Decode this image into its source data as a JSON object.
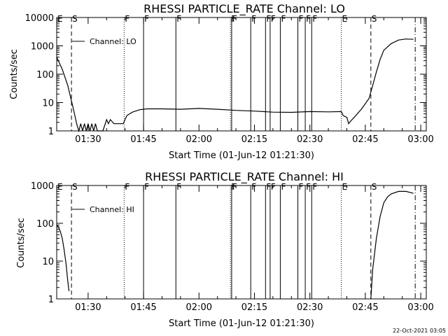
{
  "colors": {
    "background": "#ffffff",
    "foreground": "#000000"
  },
  "footer": {
    "timestamp": "22-Oct-2021 03:05"
  },
  "chart_data": [
    {
      "type": "line",
      "title": "RHESSI PARTICLE_RATE Channel: LO",
      "xlabel": "Start Time (01-Jun-12 01:21:30)",
      "ylabel": "Counts/sec",
      "xlim": [
        "01:21:30",
        "03:01:30"
      ],
      "ylim": [
        1,
        10000
      ],
      "yscale": "log",
      "grid": false,
      "x_ticks": [
        "01:30",
        "01:45",
        "02:00",
        "02:15",
        "02:30",
        "02:45",
        "03:00"
      ],
      "y_ticks": [
        "1",
        "10",
        "100",
        "1000",
        "10000"
      ],
      "legend": {
        "position": "top-left",
        "entries": [
          "Channel: LO"
        ]
      },
      "series": [
        {
          "name": "Channel: LO",
          "points": [
            [
              "01:21:30",
              400
            ],
            [
              "01:23:00",
              150
            ],
            [
              "01:24:30",
              40
            ],
            [
              "01:26:00",
              6
            ],
            [
              "01:27:00",
              1.6
            ],
            [
              "01:27:30",
              1
            ],
            [
              "01:28:00",
              1.8
            ],
            [
              "01:28:30",
              1
            ],
            [
              "01:29:00",
              1.8
            ],
            [
              "01:29:30",
              1
            ],
            [
              "01:30:00",
              1.8
            ],
            [
              "01:30:30",
              1
            ],
            [
              "01:31:00",
              1.8
            ],
            [
              "01:31:30",
              1
            ],
            [
              "01:32:00",
              1.8
            ],
            [
              "01:32:30",
              1
            ],
            [
              "01:33:00",
              1
            ],
            [
              "01:34:00",
              1
            ],
            [
              "01:35:00",
              2.5
            ],
            [
              "01:35:30",
              1.8
            ],
            [
              "01:36:00",
              2.5
            ],
            [
              "01:37:00",
              1.8
            ],
            [
              "01:38:00",
              1.8
            ],
            [
              "01:39:30",
              1.8
            ],
            [
              "01:40:30",
              3.5
            ],
            [
              "01:42:00",
              4.6
            ],
            [
              "01:44:00",
              5.6
            ],
            [
              "01:46:00",
              6.0
            ],
            [
              "01:50:00",
              6.0
            ],
            [
              "01:55:00",
              5.8
            ],
            [
              "02:00:00",
              6.2
            ],
            [
              "02:05:00",
              5.8
            ],
            [
              "02:10:00",
              5.3
            ],
            [
              "02:15:00",
              5.0
            ],
            [
              "02:20:00",
              4.6
            ],
            [
              "02:25:00",
              4.5
            ],
            [
              "02:30:00",
              4.8
            ],
            [
              "02:35:00",
              4.7
            ],
            [
              "02:38:30",
              4.8
            ],
            [
              "02:39:00",
              3.5
            ],
            [
              "02:40:00",
              3.0
            ],
            [
              "02:40:30",
              1.8
            ],
            [
              "02:41:00",
              2.2
            ],
            [
              "02:42:00",
              3.0
            ],
            [
              "02:44:00",
              6.0
            ],
            [
              "02:46:00",
              14
            ],
            [
              "02:47:00",
              40
            ],
            [
              "02:48:00",
              120
            ],
            [
              "02:49:00",
              330
            ],
            [
              "02:50:00",
              700
            ],
            [
              "02:52:00",
              1200
            ],
            [
              "02:54:00",
              1600
            ],
            [
              "02:56:00",
              1750
            ],
            [
              "02:58:00",
              1700
            ]
          ]
        }
      ],
      "markers": [
        {
          "label": "E",
          "time": "01:21:30",
          "style": "dotted"
        },
        {
          "label": "S",
          "time": "01:25:30",
          "style": "dashed"
        },
        {
          "label": "F",
          "time": "01:39:45",
          "style": "dotted"
        },
        {
          "label": "F",
          "time": "01:45:00",
          "style": "solid"
        },
        {
          "label": "F",
          "time": "01:53:45",
          "style": "solid"
        },
        {
          "label": "F",
          "time": "02:08:30",
          "style": "dotted"
        },
        {
          "label": "F",
          "time": "02:08:50",
          "style": "solid"
        },
        {
          "label": "F",
          "time": "02:14:00",
          "style": "solid"
        },
        {
          "label": "F",
          "time": "02:18:00",
          "style": "solid"
        },
        {
          "label": "F",
          "time": "02:19:15",
          "style": "solid"
        },
        {
          "label": "F",
          "time": "02:22:00",
          "style": "solid"
        },
        {
          "label": "F",
          "time": "02:26:45",
          "style": "solid"
        },
        {
          "label": "F",
          "time": "02:28:45",
          "style": "solid"
        },
        {
          "label": "F",
          "time": "02:30:30",
          "style": "solid"
        },
        {
          "label": "E",
          "time": "02:38:30",
          "style": "dotted"
        },
        {
          "label": "S",
          "time": "02:46:30",
          "style": "dashed"
        },
        {
          "label": "",
          "time": "02:58:30",
          "style": "dashdot"
        }
      ]
    },
    {
      "type": "line",
      "title": "RHESSI PARTICLE_RATE Channel: HI",
      "xlabel": "Start Time (01-Jun-12 01:21:30)",
      "ylabel": "Counts/sec",
      "xlim": [
        "01:21:30",
        "03:01:30"
      ],
      "ylim": [
        1,
        1000
      ],
      "yscale": "log",
      "grid": false,
      "x_ticks": [
        "01:30",
        "01:45",
        "02:00",
        "02:15",
        "02:30",
        "02:45",
        "03:00"
      ],
      "y_ticks": [
        "1",
        "10",
        "100",
        "1000"
      ],
      "legend": {
        "position": "top-left",
        "entries": [
          "Channel: HI"
        ]
      },
      "series": [
        {
          "name": "Channel: HI",
          "segments": [
            [
              [
                "01:21:30",
                90
              ],
              [
                "01:22:00",
                80
              ],
              [
                "01:22:30",
                60
              ],
              [
                "01:23:00",
                40
              ],
              [
                "01:23:30",
                20
              ],
              [
                "01:24:00",
                9
              ],
              [
                "01:24:30",
                3
              ],
              [
                "01:24:50",
                1.6
              ]
            ],
            [
              [
                "02:46:30",
                1
              ],
              [
                "02:47:00",
                6
              ],
              [
                "02:48:00",
                40
              ],
              [
                "02:49:00",
                150
              ],
              [
                "02:50:00",
                350
              ],
              [
                "02:51:00",
                500
              ],
              [
                "02:52:00",
                600
              ],
              [
                "02:54:00",
                700
              ],
              [
                "02:56:00",
                700
              ],
              [
                "02:58:00",
                620
              ]
            ]
          ]
        }
      ],
      "markers": [
        {
          "label": "E",
          "time": "01:21:30",
          "style": "dotted"
        },
        {
          "label": "S",
          "time": "01:25:30",
          "style": "dashed"
        },
        {
          "label": "F",
          "time": "01:39:45",
          "style": "dotted"
        },
        {
          "label": "F",
          "time": "01:45:00",
          "style": "solid"
        },
        {
          "label": "F",
          "time": "01:53:45",
          "style": "solid"
        },
        {
          "label": "F",
          "time": "02:08:30",
          "style": "dotted"
        },
        {
          "label": "F",
          "time": "02:08:50",
          "style": "solid"
        },
        {
          "label": "F",
          "time": "02:14:00",
          "style": "solid"
        },
        {
          "label": "F",
          "time": "02:18:00",
          "style": "solid"
        },
        {
          "label": "F",
          "time": "02:19:15",
          "style": "solid"
        },
        {
          "label": "F",
          "time": "02:22:00",
          "style": "solid"
        },
        {
          "label": "F",
          "time": "02:26:45",
          "style": "solid"
        },
        {
          "label": "F",
          "time": "02:28:45",
          "style": "solid"
        },
        {
          "label": "F",
          "time": "02:30:30",
          "style": "solid"
        },
        {
          "label": "E",
          "time": "02:38:30",
          "style": "dotted"
        },
        {
          "label": "S",
          "time": "02:46:30",
          "style": "dashed"
        },
        {
          "label": "",
          "time": "02:58:30",
          "style": "dashdot"
        }
      ]
    }
  ]
}
